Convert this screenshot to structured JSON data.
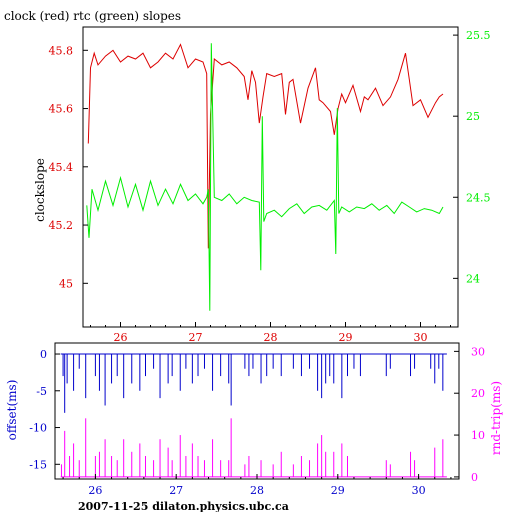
{
  "colors": {
    "red": "#dd0000",
    "green": "#00ee00",
    "blue": "#0000cc",
    "magenta": "#ff00ff",
    "black": "#000000"
  },
  "chart_data": [
    {
      "type": "line",
      "title": "clock (red) rtc (green) slopes",
      "ylabel": "clockslope",
      "xlim": [
        25.5,
        30.5
      ],
      "x_ticks": [
        26,
        27,
        28,
        29,
        30
      ],
      "x_tick_labels": [
        "26",
        "27",
        "28",
        "29",
        "30"
      ],
      "ylim_left": [
        44.85,
        45.88
      ],
      "y_ticks_left": [
        45,
        45.2,
        45.4,
        45.6,
        45.8
      ],
      "y_tick_labels_left": [
        "45",
        "45.2",
        "45.4",
        "45.6",
        "45.8"
      ],
      "ylim_right": [
        23.7,
        25.55
      ],
      "y_ticks_right": [
        24,
        24.5,
        25,
        25.5
      ],
      "y_tick_labels_right": [
        "24",
        "24.5",
        "25",
        "25.5"
      ],
      "series": [
        {
          "color_key": "red",
          "axis": "left",
          "x": [
            25.57,
            25.6,
            25.65,
            25.7,
            25.8,
            25.9,
            26.0,
            26.1,
            26.2,
            26.3,
            26.4,
            26.5,
            26.6,
            26.7,
            26.8,
            26.9,
            27.0,
            27.1,
            27.15,
            27.17,
            27.2,
            27.25,
            27.35,
            27.45,
            27.55,
            27.65,
            27.7,
            27.75,
            27.8,
            27.85,
            27.9,
            27.95,
            28.05,
            28.15,
            28.2,
            28.25,
            28.3,
            28.4,
            28.5,
            28.6,
            28.65,
            28.7,
            28.8,
            28.85,
            28.9,
            28.95,
            29.0,
            29.1,
            29.2,
            29.25,
            29.3,
            29.4,
            29.5,
            29.6,
            29.7,
            29.8,
            29.85,
            29.9,
            30.0,
            30.1,
            30.2,
            30.25,
            30.3
          ],
          "y": [
            45.48,
            45.74,
            45.79,
            45.75,
            45.78,
            45.8,
            45.76,
            45.78,
            45.77,
            45.79,
            45.74,
            45.76,
            45.79,
            45.77,
            45.82,
            45.74,
            45.77,
            45.76,
            45.72,
            45.12,
            45.58,
            45.77,
            45.75,
            45.76,
            45.74,
            45.71,
            45.63,
            45.73,
            45.69,
            45.55,
            45.64,
            45.72,
            45.71,
            45.72,
            45.58,
            45.69,
            45.7,
            45.55,
            45.67,
            45.74,
            45.63,
            45.62,
            45.59,
            45.51,
            45.6,
            45.65,
            45.62,
            45.68,
            45.59,
            45.64,
            45.63,
            45.67,
            45.61,
            45.64,
            45.7,
            45.79,
            45.7,
            45.61,
            45.63,
            45.57,
            45.62,
            45.64,
            45.65
          ]
        },
        {
          "color_key": "green",
          "axis": "right",
          "x": [
            25.55,
            25.58,
            25.62,
            25.7,
            25.8,
            25.9,
            26.0,
            26.1,
            26.2,
            26.3,
            26.4,
            26.5,
            26.6,
            26.7,
            26.8,
            26.9,
            27.0,
            27.1,
            27.15,
            27.17,
            27.19,
            27.21,
            27.25,
            27.35,
            27.45,
            27.55,
            27.65,
            27.75,
            27.85,
            27.87,
            27.89,
            27.91,
            27.95,
            28.05,
            28.15,
            28.25,
            28.35,
            28.45,
            28.55,
            28.65,
            28.75,
            28.85,
            28.87,
            28.89,
            28.91,
            28.95,
            29.05,
            29.15,
            29.25,
            29.35,
            29.45,
            29.55,
            29.65,
            29.75,
            29.85,
            29.95,
            30.05,
            30.15,
            30.25,
            30.3
          ],
          "y": [
            24.45,
            24.25,
            24.55,
            24.42,
            24.6,
            24.45,
            24.62,
            24.44,
            24.58,
            24.42,
            24.6,
            24.45,
            24.55,
            24.46,
            24.58,
            24.48,
            24.52,
            24.46,
            24.5,
            24.55,
            23.8,
            25.45,
            24.5,
            24.48,
            24.52,
            24.46,
            24.5,
            24.48,
            24.47,
            24.05,
            25.0,
            24.35,
            24.4,
            24.42,
            24.38,
            24.43,
            24.46,
            24.4,
            24.44,
            24.45,
            24.42,
            24.48,
            24.15,
            25.05,
            24.4,
            24.44,
            24.41,
            24.44,
            24.43,
            24.46,
            24.42,
            24.45,
            24.4,
            24.47,
            24.44,
            24.41,
            24.43,
            24.42,
            24.4,
            24.44
          ]
        }
      ]
    },
    {
      "type": "line",
      "title": "",
      "ylabel_left": "offset(ms)",
      "ylabel_right": "rnd-trip(ms)",
      "xlim": [
        25.5,
        30.5
      ],
      "x_ticks": [
        26,
        27,
        28,
        29,
        30
      ],
      "x_tick_labels": [
        "26",
        "27",
        "28",
        "29",
        "30"
      ],
      "ylim_left": [
        -17,
        1.5
      ],
      "y_ticks_left": [
        0,
        -5,
        -10,
        -15
      ],
      "y_tick_labels_left": [
        "0",
        "-5",
        "-10",
        "-15"
      ],
      "ylim_right": [
        -0.5,
        32
      ],
      "y_ticks_right": [
        0,
        10,
        20,
        30
      ],
      "y_tick_labels_right": [
        "0",
        "10",
        "20",
        "30"
      ],
      "series": [
        {
          "color_key": "blue",
          "axis": "left",
          "baseline": 0,
          "spikes_x": [
            25.6,
            25.62,
            25.65,
            25.73,
            25.8,
            25.88,
            26.0,
            26.05,
            26.12,
            26.2,
            26.27,
            26.35,
            26.45,
            26.55,
            26.62,
            26.72,
            26.8,
            26.9,
            26.95,
            27.05,
            27.12,
            27.2,
            27.27,
            27.35,
            27.45,
            27.55,
            27.65,
            27.68,
            27.85,
            27.9,
            27.95,
            28.05,
            28.12,
            28.2,
            28.3,
            28.45,
            28.55,
            28.65,
            28.75,
            28.8,
            28.85,
            28.9,
            28.95,
            29.05,
            29.12,
            29.2,
            29.28,
            29.6,
            29.65,
            29.9,
            29.95,
            30.15,
            30.2,
            30.25,
            30.3
          ],
          "spikes_y": [
            -3,
            -8,
            -4,
            -5,
            -2,
            -6,
            -3,
            -5,
            -7,
            -4,
            -3,
            -6,
            -4,
            -5,
            -3,
            -2,
            -6,
            -4,
            -3,
            -5,
            -2,
            -4,
            -3,
            -2,
            -5,
            -3,
            -4,
            -7,
            -2,
            -3,
            -2,
            -4,
            -3,
            -2,
            -3,
            -2,
            -3,
            -2,
            -5,
            -6,
            -4,
            -3,
            -4,
            -6,
            -3,
            -2,
            -3,
            -3,
            -2,
            -3,
            -2,
            -2,
            -4,
            -2,
            -5
          ]
        },
        {
          "color_key": "magenta",
          "axis": "right",
          "baseline": 0,
          "spikes_x": [
            25.58,
            25.62,
            25.68,
            25.73,
            25.8,
            25.88,
            26.0,
            26.05,
            26.12,
            26.2,
            26.27,
            26.35,
            26.45,
            26.55,
            26.62,
            26.72,
            26.8,
            26.9,
            26.95,
            27.05,
            27.12,
            27.2,
            27.27,
            27.35,
            27.45,
            27.55,
            27.65,
            27.68,
            27.85,
            27.9,
            28.05,
            28.2,
            28.3,
            28.45,
            28.55,
            28.65,
            28.75,
            28.8,
            28.85,
            28.95,
            29.05,
            29.12,
            29.6,
            29.65,
            29.9,
            29.95,
            30.2,
            30.3
          ],
          "spikes_y": [
            3,
            11,
            5,
            8,
            4,
            14,
            5,
            6,
            9,
            5,
            4,
            9,
            6,
            8,
            5,
            4,
            9,
            7,
            4,
            10,
            5,
            8,
            5,
            4,
            9,
            4,
            4,
            14,
            3,
            5,
            4,
            3,
            6,
            3,
            5,
            4,
            8,
            10,
            6,
            6,
            8,
            5,
            4,
            3,
            6,
            4,
            7,
            9
          ]
        }
      ]
    }
  ],
  "footer_text": "2007-11-25  dilaton.physics.ubc.ca"
}
